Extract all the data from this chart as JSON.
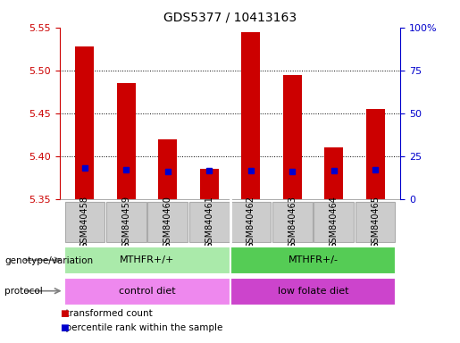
{
  "title": "GDS5377 / 10413163",
  "samples": [
    "GSM840458",
    "GSM840459",
    "GSM840460",
    "GSM840461",
    "GSM840462",
    "GSM840463",
    "GSM840464",
    "GSM840465"
  ],
  "transformed_counts": [
    5.528,
    5.485,
    5.42,
    5.385,
    5.545,
    5.495,
    5.41,
    5.455
  ],
  "percentile_y_values": [
    5.386,
    5.384,
    5.382,
    5.383,
    5.383,
    5.382,
    5.383,
    5.384
  ],
  "bar_bottom": 5.35,
  "ylim": [
    5.35,
    5.55
  ],
  "yticks_left": [
    5.35,
    5.4,
    5.45,
    5.5,
    5.55
  ],
  "yticks_right": [
    0,
    25,
    50,
    75,
    100
  ],
  "yticks_right_vals": [
    5.35,
    5.4,
    5.45,
    5.5,
    5.55
  ],
  "bar_color": "#cc0000",
  "percentile_color": "#0000cc",
  "bar_width": 0.45,
  "genotype_groups": [
    {
      "label": "MTHFR+/+",
      "start": 0,
      "end": 4,
      "color": "#aaeaaa"
    },
    {
      "label": "MTHFR+/-",
      "start": 4,
      "end": 8,
      "color": "#55cc55"
    }
  ],
  "protocol_groups": [
    {
      "label": "control diet",
      "start": 0,
      "end": 4,
      "color": "#ee88ee"
    },
    {
      "label": "low folate diet",
      "start": 4,
      "end": 8,
      "color": "#cc44cc"
    }
  ],
  "genotype_label": "genotype/variation",
  "protocol_label": "protocol",
  "legend_items": [
    {
      "color": "#cc0000",
      "label": "transformed count"
    },
    {
      "color": "#0000cc",
      "label": "percentile rank within the sample"
    }
  ],
  "left_axis_color": "#cc0000",
  "right_axis_color": "#0000cc",
  "grid_color": "black",
  "bg_color": "#ffffff",
  "sample_bg_color": "#cccccc",
  "sample_border_color": "#aaaaaa"
}
